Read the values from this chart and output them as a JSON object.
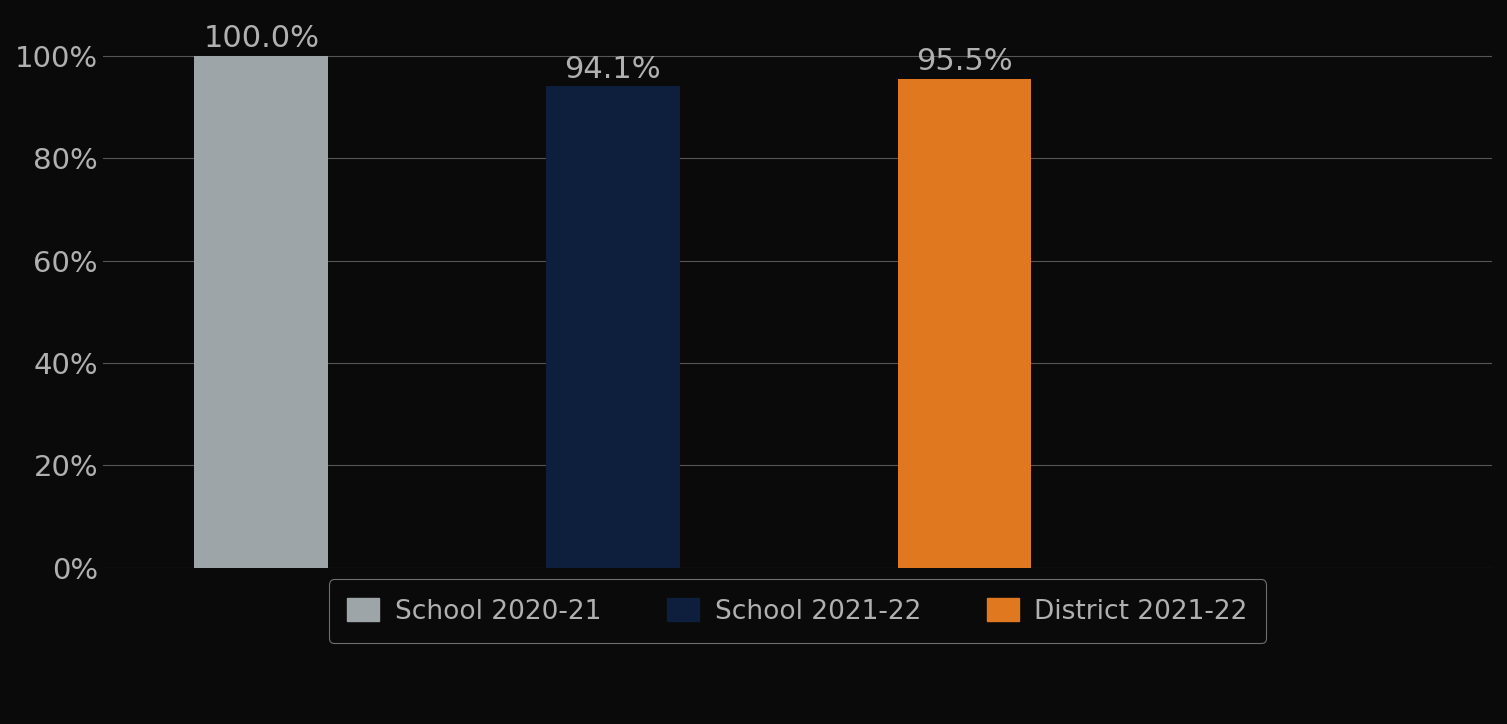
{
  "categories": [
    "School 2020-21",
    "School 2021-22",
    "District 2021-22"
  ],
  "values": [
    100.0,
    94.1,
    95.5
  ],
  "bar_colors": [
    "#9EA5A8",
    "#0D1F3C",
    "#E07820"
  ],
  "background_color": "#0a0a0a",
  "text_color": "#b0b0b0",
  "tick_fontsize": 21,
  "legend_fontsize": 19,
  "bar_label_fontsize": 22,
  "ylim": [
    0,
    108
  ],
  "yticks": [
    0,
    20,
    40,
    60,
    80,
    100
  ],
  "ytick_labels": [
    "0%",
    "20%",
    "40%",
    "60%",
    "80%",
    "100%"
  ],
  "grid_color": "#555555",
  "bar_width": 0.38,
  "x_positions": [
    1,
    2,
    3
  ],
  "xlim": [
    0.55,
    4.5
  ]
}
